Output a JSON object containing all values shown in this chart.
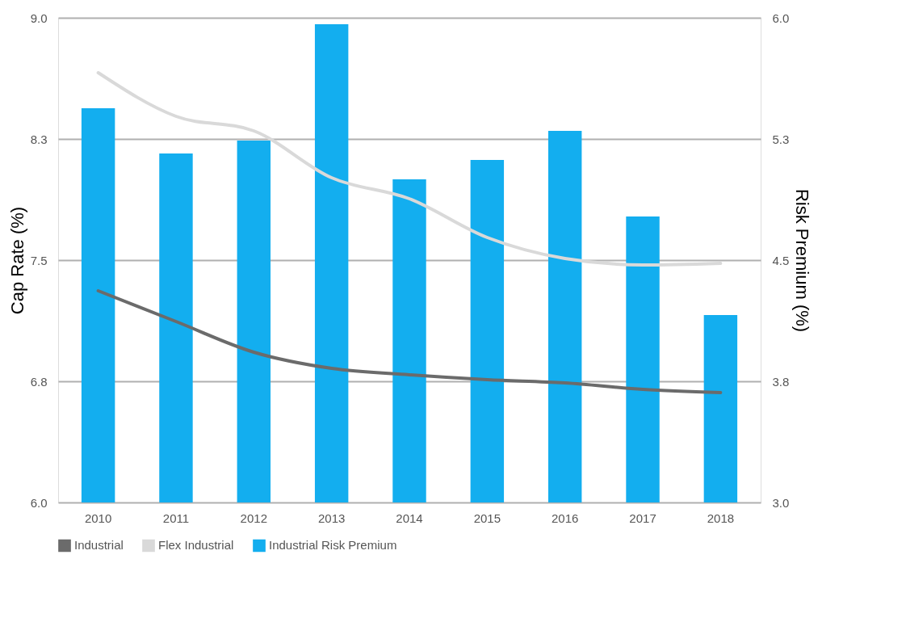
{
  "chart_data": {
    "type": "bar",
    "categories": [
      "2010",
      "2011",
      "2012",
      "2013",
      "2014",
      "2015",
      "2016",
      "2017",
      "2018"
    ],
    "ylabel": "Cap Rate (%)",
    "y2label": "Risk Premium (%)",
    "ylim": [
      6.0,
      9.0
    ],
    "yticks": [
      {
        "value": 6,
        "label": "6.0"
      },
      {
        "value": 6.75,
        "label": "6.8"
      },
      7.5,
      {
        "value": 8.25,
        "label": "8.3"
      },
      {
        "value": 9,
        "label": "9.0"
      }
    ],
    "y2lim": [
      3.0,
      6.0
    ],
    "y2ticks": [
      {
        "value": 3,
        "label": "3.0"
      },
      {
        "value": 3.75,
        "label": "3.8"
      },
      4.5,
      {
        "value": 5.25,
        "label": "5.3"
      },
      {
        "value": 6,
        "label": "6.0"
      }
    ],
    "series": [
      {
        "name": "Industrial Risk Premium",
        "axis": "y2",
        "color": "#13aeef",
        "values": [
          5.44,
          5.16,
          5.24,
          5.96,
          5.0,
          5.12,
          5.3,
          4.77,
          4.16
        ]
      },
      {
        "name": "Industrial",
        "type": "line",
        "color": "#6b6b6b",
        "values": [
          7.31,
          7.12,
          6.93,
          6.83,
          6.79,
          6.76,
          6.74,
          6.7,
          6.68
        ]
      },
      {
        "name": "Flex Industrial",
        "type": "line",
        "color": "#d9d9d9",
        "values": [
          8.66,
          8.39,
          8.3,
          8.01,
          7.88,
          7.64,
          7.51,
          7.47,
          7.48
        ]
      }
    ],
    "grid": "y",
    "legend": "bottom",
    "line_style": "solid",
    "marker": "none"
  }
}
